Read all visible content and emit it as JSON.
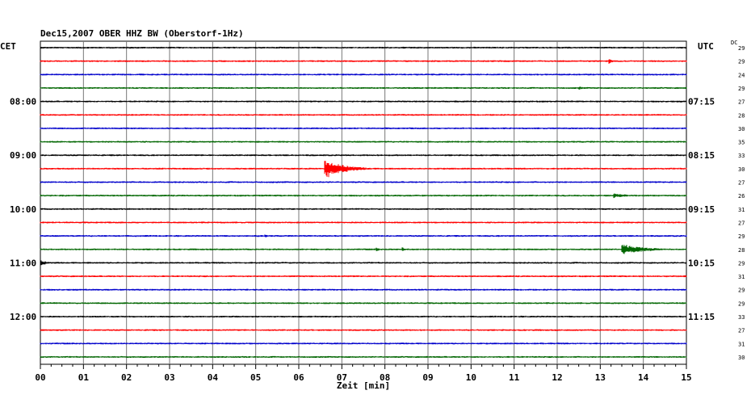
{
  "header": {
    "title": "Dec15,2007   OBER HHZ BW (Oberstorf-1Hz)",
    "left_label": "CET",
    "right_label": "UTC",
    "dc_label": "DC"
  },
  "chart_data": {
    "type": "line",
    "xlabel": "Zeit [min]",
    "xlim": [
      0,
      15
    ],
    "x_ticks": [
      "00",
      "01",
      "02",
      "03",
      "04",
      "05",
      "06",
      "07",
      "08",
      "09",
      "10",
      "11",
      "12",
      "13",
      "14",
      "15"
    ],
    "trace_count": 24,
    "trace_colors": [
      "#000000",
      "#ff0000",
      "#0000cc",
      "#006600"
    ],
    "cet_labels": [
      {
        "trace": 4,
        "label": "08:00"
      },
      {
        "trace": 8,
        "label": "09:00"
      },
      {
        "trace": 12,
        "label": "10:00"
      },
      {
        "trace": 16,
        "label": "11:00"
      },
      {
        "trace": 20,
        "label": "12:00"
      }
    ],
    "utc_labels": [
      {
        "trace": 4,
        "label": "07:15"
      },
      {
        "trace": 8,
        "label": "08:15"
      },
      {
        "trace": 12,
        "label": "09:15"
      },
      {
        "trace": 16,
        "label": "10:15"
      },
      {
        "trace": 20,
        "label": "11:15"
      }
    ],
    "dc_values": [
      "29",
      "29",
      "24",
      "29",
      "27",
      "28",
      "30",
      "35",
      "33",
      "30",
      "27",
      "26",
      "31",
      "27",
      "29",
      "28",
      "29",
      "31",
      "29",
      "29",
      "33",
      "27",
      "31",
      "30"
    ],
    "events": [
      {
        "trace": 1,
        "minute": 13.2,
        "duration": 0.2,
        "amplitude": 4
      },
      {
        "trace": 3,
        "minute": 12.5,
        "duration": 0.5,
        "amplitude": 2
      },
      {
        "trace": 9,
        "minute": 6.6,
        "duration": 1.2,
        "amplitude": 11
      },
      {
        "trace": 11,
        "minute": 13.3,
        "duration": 0.9,
        "amplitude": 3
      },
      {
        "trace": 14,
        "minute": 5.2,
        "duration": 0.4,
        "amplitude": 2
      },
      {
        "trace": 15,
        "minute": 7.8,
        "duration": 0.2,
        "amplitude": 3
      },
      {
        "trace": 15,
        "minute": 8.4,
        "duration": 0.15,
        "amplitude": 3
      },
      {
        "trace": 15,
        "minute": 13.5,
        "duration": 1.5,
        "amplitude": 6
      },
      {
        "trace": 16,
        "minute": 0.0,
        "duration": 0.6,
        "amplitude": 3
      }
    ]
  }
}
